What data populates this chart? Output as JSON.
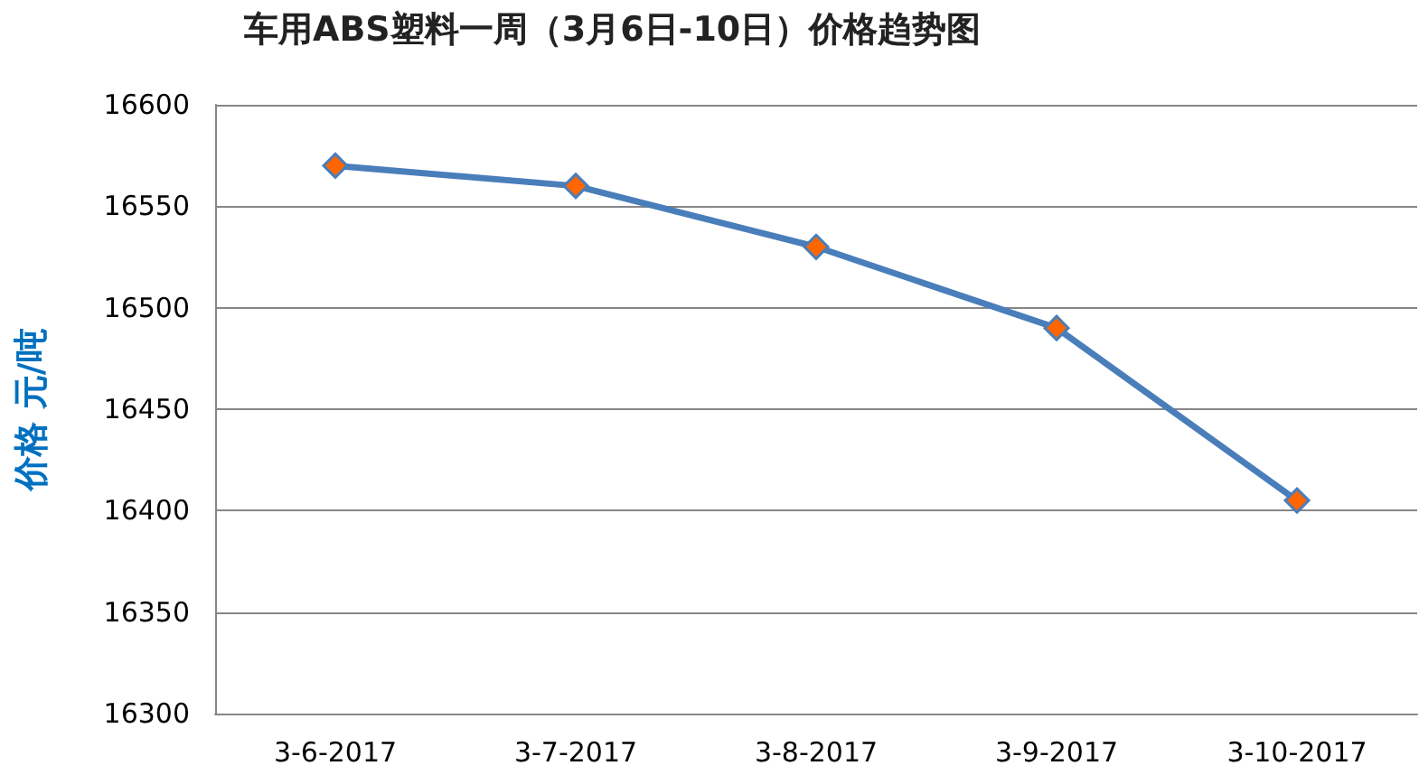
{
  "chart_data": {
    "type": "line",
    "title": "车用ABS塑料一周（3月6日-10日）价格趋势图",
    "ylabel": "价格 元/吨",
    "categories": [
      "3-6-2017",
      "3-7-2017",
      "3-8-2017",
      "3-9-2017",
      "3-10-2017"
    ],
    "series": [
      {
        "color": "#4a7ebb",
        "colors": [
          "#ff6600",
          "#ff6600",
          "#ff6600",
          "#ff6600",
          "#ff6600"
        ],
        "values": [
          16570,
          16560,
          16530,
          16490,
          16405
        ]
      }
    ],
    "ylim": [
      16300,
      16600
    ],
    "yticks": [
      16300,
      16350,
      16400,
      16450,
      16500,
      16550,
      16600
    ],
    "grid": "y",
    "marker": "diamond",
    "line_style": "solid"
  }
}
